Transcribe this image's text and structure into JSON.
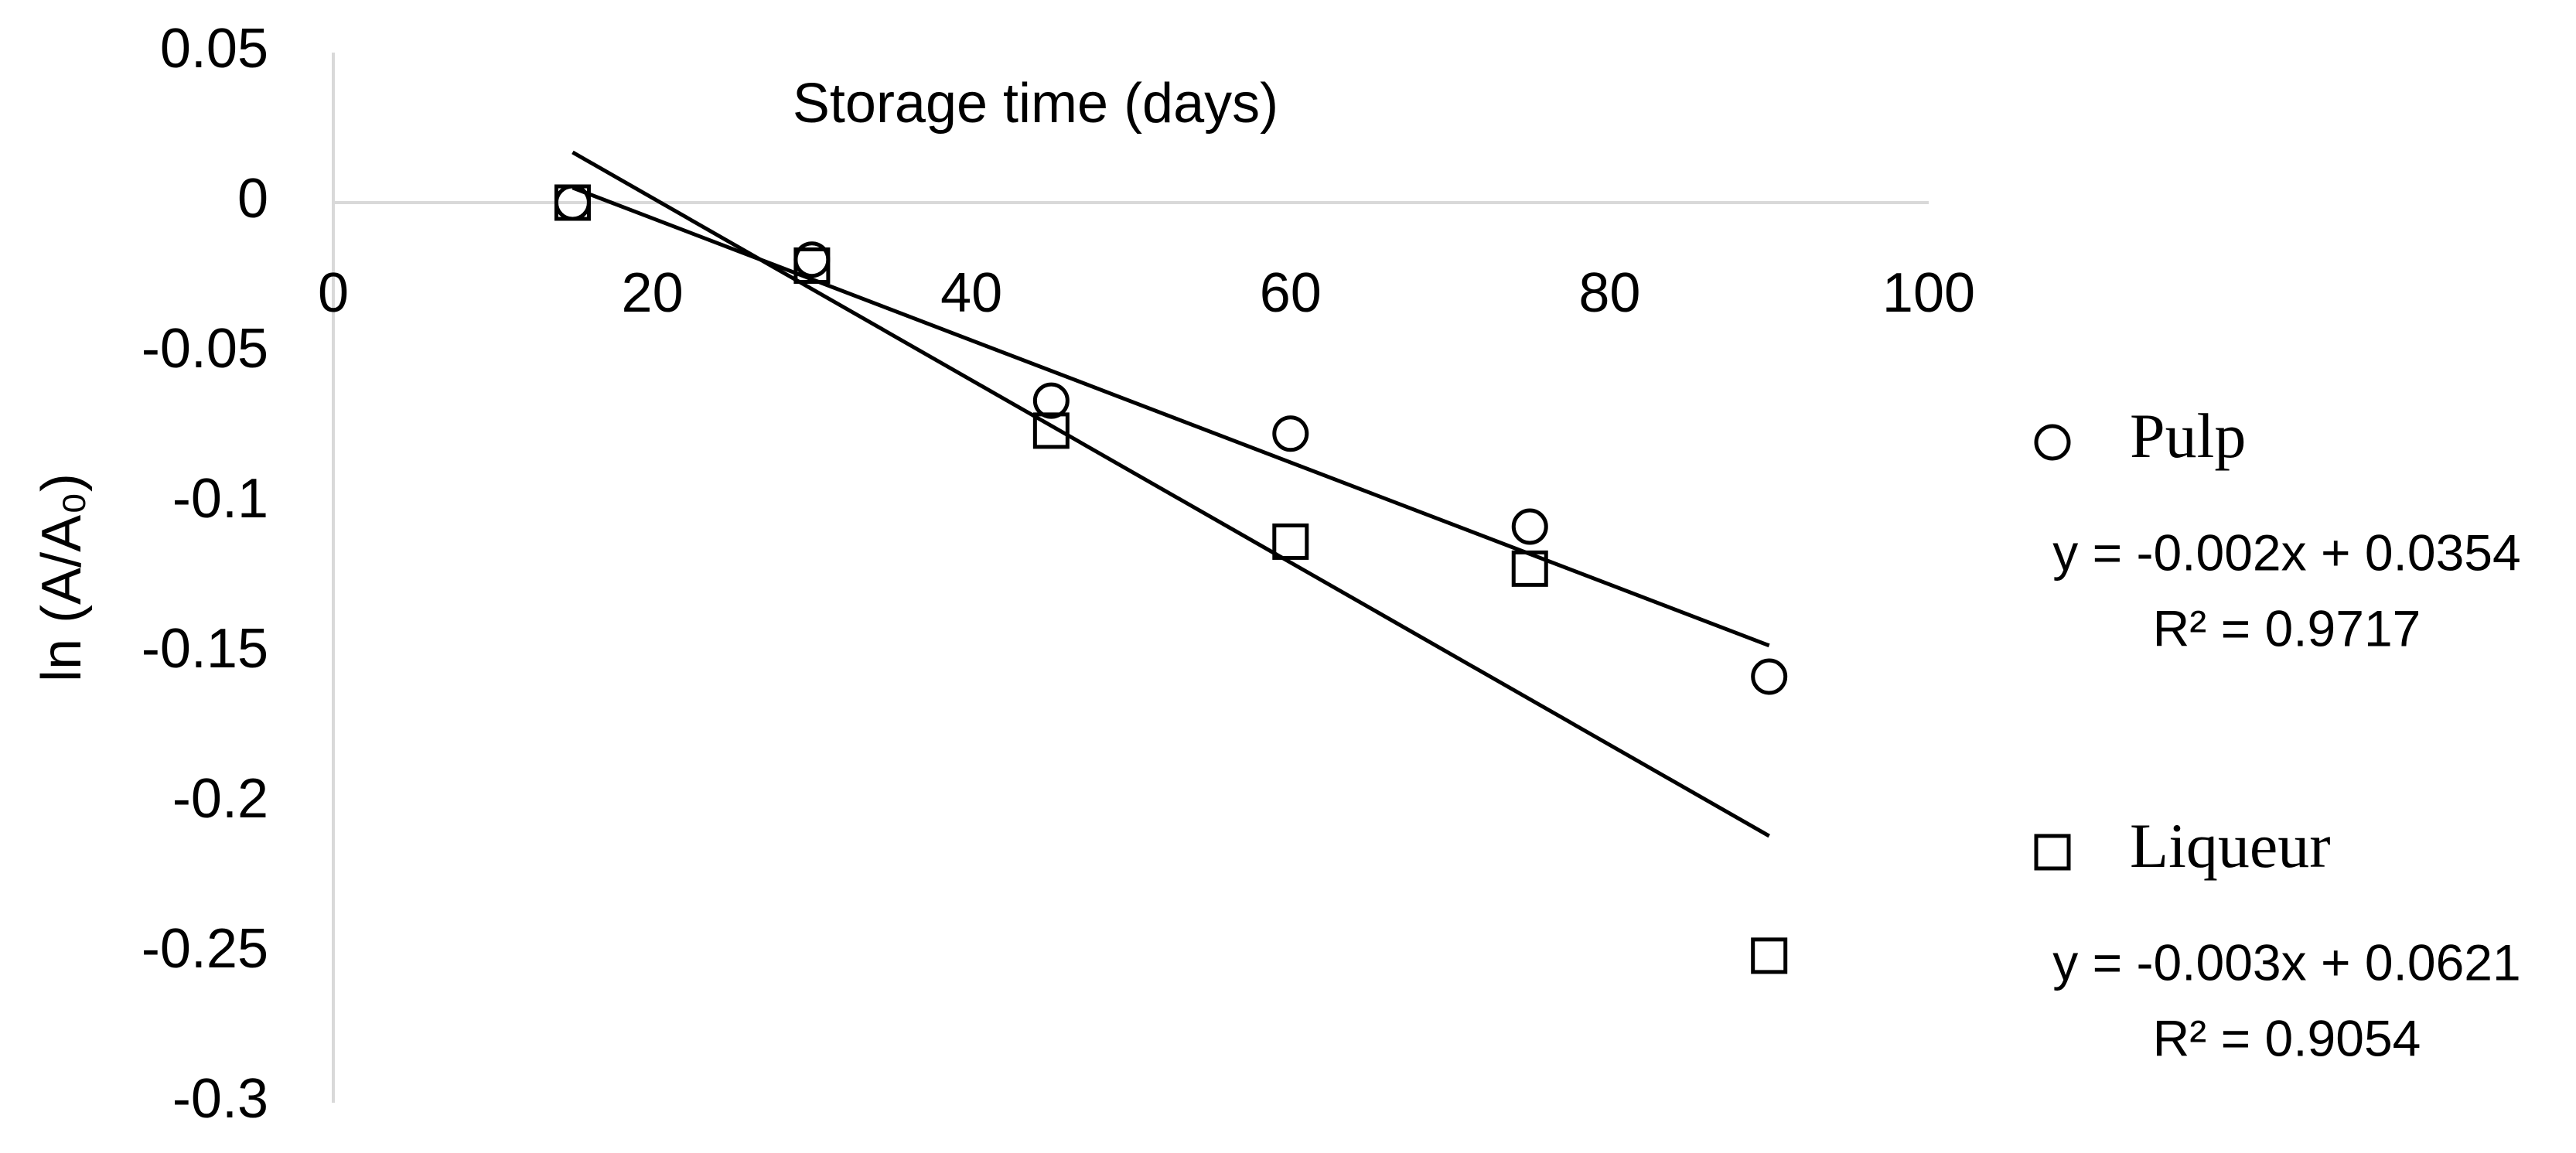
{
  "chart_data": {
    "type": "scatter",
    "x_label": "Storage time (days)",
    "y_label": "ln (A/A₀)",
    "xlim": [
      0,
      100
    ],
    "xticks": [
      0,
      20,
      40,
      60,
      80,
      100
    ],
    "ylim": [
      -0.3,
      0.05
    ],
    "yticks": [
      0.05,
      0,
      -0.05,
      -0.1,
      -0.15,
      -0.2,
      -0.25,
      -0.3
    ],
    "grid": false,
    "trendline": "linear",
    "legend": "right",
    "series": [
      {
        "name": "Pulp",
        "marker": "circle",
        "color": "#000000",
        "x": [
          15,
          30,
          45,
          60,
          75,
          90
        ],
        "values": [
          0,
          -0.019,
          -0.066,
          -0.077,
          -0.108,
          -0.158
        ],
        "equation": "y = -0.002x + 0.0354",
        "r2": "R² = 0.9717"
      },
      {
        "name": "Liqueur",
        "marker": "square",
        "color": "#000000",
        "x": [
          15,
          30,
          45,
          60,
          75,
          90
        ],
        "values": [
          0,
          -0.021,
          -0.076,
          -0.113,
          -0.122,
          -0.251
        ],
        "equation": "y = -0.003x + 0.0621",
        "r2": "R² = 0.9054"
      }
    ]
  }
}
